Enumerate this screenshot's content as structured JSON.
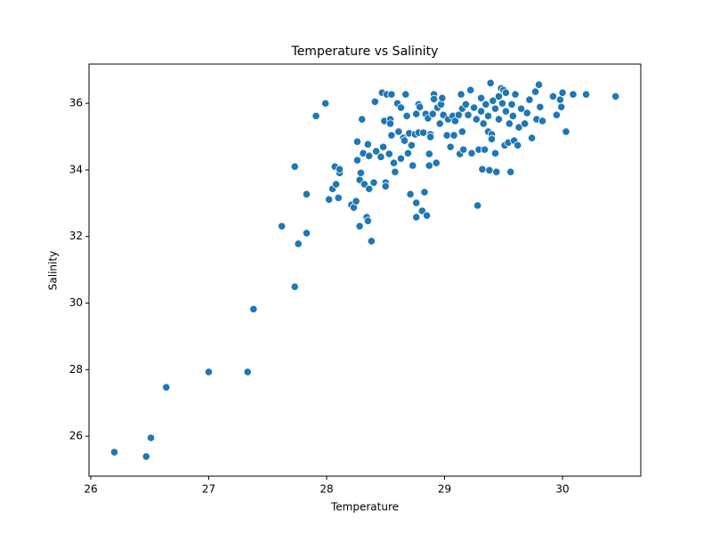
{
  "chart_data": {
    "type": "scatter",
    "title": "Temperature vs Salinity",
    "x_label": "Temperature",
    "y_label": "Salinity",
    "color": "#1f77b4",
    "xlim": [
      25.985,
      30.664
    ],
    "ylim": [
      24.8,
      37.18
    ],
    "xticks": [
      26,
      27,
      28,
      29,
      30
    ],
    "yticks": [
      26,
      28,
      30,
      32,
      34,
      36
    ],
    "x": [
      26.2,
      26.47,
      26.51,
      26.64,
      27.0,
      27.33,
      27.38,
      27.62,
      27.73,
      27.73,
      27.76,
      27.83,
      27.83,
      27.91,
      27.99,
      28.02,
      28.05,
      28.07,
      28.08,
      28.1,
      28.11,
      28.11,
      28.21,
      28.23,
      28.25,
      28.26,
      28.26,
      28.28,
      28.28,
      28.29,
      28.3,
      28.31,
      28.32,
      28.34,
      28.35,
      28.35,
      28.36,
      28.36,
      28.38,
      28.4,
      28.41,
      28.42,
      28.46,
      28.47,
      28.48,
      28.49,
      28.5,
      28.5,
      28.51,
      28.53,
      28.54,
      28.54,
      28.55,
      28.55,
      28.57,
      28.58,
      28.6,
      28.61,
      28.63,
      28.63,
      28.65,
      28.66,
      28.67,
      28.68,
      28.69,
      28.7,
      28.71,
      28.72,
      28.73,
      28.75,
      28.76,
      28.76,
      28.76,
      28.78,
      28.78,
      28.79,
      28.81,
      28.82,
      28.83,
      28.84,
      28.85,
      28.86,
      28.87,
      28.87,
      28.88,
      28.88,
      28.9,
      28.91,
      28.91,
      28.93,
      28.94,
      28.96,
      28.97,
      28.98,
      28.99,
      29.02,
      29.03,
      29.05,
      29.07,
      29.08,
      29.09,
      29.12,
      29.13,
      29.14,
      29.15,
      29.15,
      29.16,
      29.18,
      29.2,
      29.22,
      29.23,
      29.25,
      29.27,
      29.28,
      29.29,
      29.31,
      29.31,
      29.32,
      29.33,
      29.34,
      29.35,
      29.37,
      29.37,
      29.38,
      29.39,
      29.4,
      29.4,
      29.41,
      29.43,
      29.43,
      29.44,
      29.46,
      29.46,
      29.48,
      29.49,
      29.5,
      29.51,
      29.52,
      29.52,
      29.54,
      29.55,
      29.56,
      29.57,
      29.58,
      29.59,
      29.6,
      29.62,
      29.63,
      29.65,
      29.68,
      29.7,
      29.72,
      29.74,
      29.77,
      29.78,
      29.8,
      29.81,
      29.83,
      29.92,
      29.95,
      29.98,
      29.99,
      30.0,
      30.03,
      30.09,
      30.2,
      30.45
    ],
    "values": [
      25.52,
      25.39,
      25.95,
      27.47,
      27.93,
      27.93,
      29.82,
      32.31,
      34.1,
      30.49,
      31.78,
      32.1,
      33.27,
      35.62,
      36.0,
      33.11,
      33.43,
      34.1,
      33.57,
      33.16,
      33.91,
      34.02,
      32.95,
      32.87,
      33.06,
      34.29,
      34.85,
      32.31,
      33.7,
      33.91,
      35.52,
      34.5,
      33.57,
      32.58,
      34.77,
      32.47,
      33.43,
      34.42,
      31.86,
      33.62,
      36.05,
      34.56,
      34.39,
      36.32,
      34.69,
      35.47,
      33.62,
      33.51,
      36.27,
      34.48,
      35.52,
      35.39,
      35.04,
      36.27,
      34.21,
      33.94,
      36.0,
      35.15,
      34.34,
      35.87,
      34.96,
      34.88,
      36.27,
      35.62,
      34.5,
      35.1,
      33.27,
      34.74,
      34.13,
      35.07,
      35.68,
      33.01,
      32.58,
      35.12,
      35.97,
      35.89,
      32.77,
      35.12,
      33.33,
      35.68,
      32.63,
      35.55,
      34.13,
      34.48,
      35.07,
      34.99,
      35.68,
      36.27,
      36.13,
      34.21,
      35.87,
      35.39,
      35.97,
      36.16,
      35.65,
      35.04,
      35.52,
      34.69,
      35.62,
      35.04,
      35.47,
      35.65,
      34.48,
      36.27,
      35.84,
      35.15,
      34.61,
      35.97,
      35.65,
      36.4,
      34.5,
      35.87,
      35.52,
      32.93,
      34.61,
      36.16,
      35.76,
      34.02,
      35.39,
      34.61,
      35.97,
      35.15,
      35.62,
      33.99,
      36.61,
      35.07,
      34.93,
      36.08,
      35.84,
      34.5,
      33.94,
      36.21,
      35.52,
      36.45,
      36.0,
      36.4,
      34.74,
      35.76,
      36.32,
      34.82,
      35.39,
      33.94,
      35.97,
      35.62,
      34.88,
      36.27,
      34.74,
      35.28,
      35.84,
      35.39,
      35.71,
      36.11,
      34.96,
      36.35,
      35.52,
      36.56,
      35.89,
      35.47,
      36.21,
      35.65,
      36.11,
      35.89,
      36.32,
      35.15,
      36.27,
      36.27,
      36.21
    ]
  }
}
